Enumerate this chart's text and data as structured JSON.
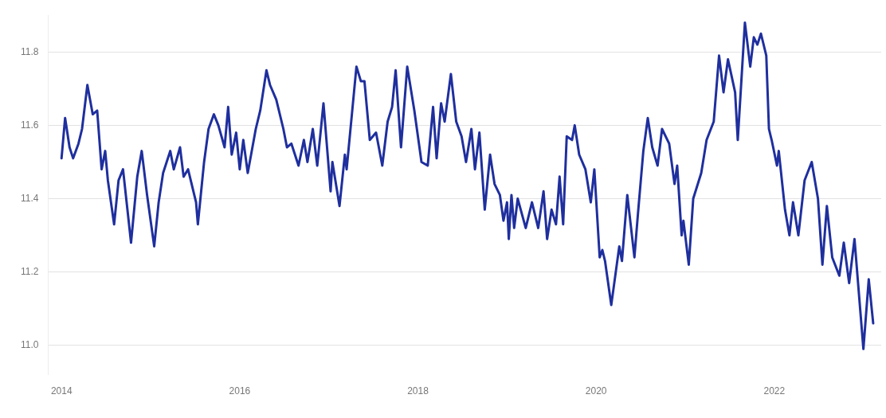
{
  "chart_data": {
    "type": "line",
    "color": "#1f2f9e",
    "marker": "none",
    "grid": "y",
    "xlim": [
      2013.85,
      2023.2
    ],
    "ylim": [
      10.92,
      11.9
    ],
    "xticks": [
      2014,
      2016,
      2018,
      2020,
      2022
    ],
    "yticks": [
      {
        "value": 11,
        "label": "11.0"
      },
      11.2,
      11.4,
      11.6,
      11.8
    ],
    "x": [
      2014.0,
      2014.04,
      2014.09,
      2014.13,
      2014.19,
      2014.23,
      2014.29,
      2014.35,
      2014.4,
      2014.45,
      2014.49,
      2014.52,
      2014.59,
      2014.64,
      2014.69,
      2014.78,
      2014.85,
      2014.9,
      2014.96,
      2015.04,
      2015.09,
      2015.14,
      2015.18,
      2015.22,
      2015.26,
      2015.33,
      2015.37,
      2015.42,
      2015.51,
      2015.53,
      2015.6,
      2015.65,
      2015.71,
      2015.76,
      2015.83,
      2015.87,
      2015.91,
      2015.96,
      2016.0,
      2016.04,
      2016.09,
      2016.18,
      2016.23,
      2016.3,
      2016.34,
      2016.41,
      2016.49,
      2016.53,
      2016.58,
      2016.66,
      2016.72,
      2016.76,
      2016.82,
      2016.87,
      2016.94,
      2017.02,
      2017.04,
      2017.12,
      2017.18,
      2017.2,
      2017.31,
      2017.36,
      2017.4,
      2017.46,
      2017.53,
      2017.6,
      2017.66,
      2017.71,
      2017.75,
      2017.81,
      2017.88,
      2017.96,
      2018.04,
      2018.11,
      2018.17,
      2018.21,
      2018.26,
      2018.3,
      2018.37,
      2018.43,
      2018.49,
      2018.54,
      2018.6,
      2018.64,
      2018.69,
      2018.75,
      2018.81,
      2018.86,
      2018.92,
      2018.96,
      2019.0,
      2019.02,
      2019.05,
      2019.08,
      2019.12,
      2019.21,
      2019.28,
      2019.35,
      2019.41,
      2019.45,
      2019.5,
      2019.55,
      2019.59,
      2019.63,
      2019.67,
      2019.73,
      2019.76,
      2019.81,
      2019.88,
      2019.94,
      2019.98,
      2020.04,
      2020.07,
      2020.1,
      2020.17,
      2020.26,
      2020.29,
      2020.35,
      2020.43,
      2020.47,
      2020.53,
      2020.58,
      2020.63,
      2020.69,
      2020.74,
      2020.82,
      2020.88,
      2020.91,
      2020.96,
      2020.98,
      2021.04,
      2021.09,
      2021.18,
      2021.24,
      2021.32,
      2021.38,
      2021.43,
      2021.48,
      2021.56,
      2021.59,
      2021.67,
      2021.73,
      2021.77,
      2021.81,
      2021.85,
      2021.91,
      2021.94,
      2021.97,
      2022.03,
      2022.05,
      2022.12,
      2022.17,
      2022.21,
      2022.27,
      2022.34,
      2022.42,
      2022.49,
      2022.54,
      2022.59,
      2022.65,
      2022.73,
      2022.78,
      2022.84,
      2022.9,
      2023.0,
      2023.06,
      2023.11
    ],
    "values": [
      11.51,
      11.62,
      11.54,
      11.51,
      11.55,
      11.59,
      11.71,
      11.63,
      11.64,
      11.48,
      11.53,
      11.45,
      11.33,
      11.45,
      11.48,
      11.28,
      11.46,
      11.53,
      11.41,
      11.27,
      11.39,
      11.47,
      11.5,
      11.53,
      11.48,
      11.54,
      11.46,
      11.48,
      11.39,
      11.33,
      11.5,
      11.59,
      11.63,
      11.6,
      11.54,
      11.65,
      11.52,
      11.58,
      11.48,
      11.56,
      11.47,
      11.59,
      11.64,
      11.75,
      11.71,
      11.67,
      11.59,
      11.54,
      11.55,
      11.49,
      11.56,
      11.5,
      11.59,
      11.49,
      11.66,
      11.42,
      11.5,
      11.38,
      11.52,
      11.48,
      11.76,
      11.72,
      11.72,
      11.56,
      11.58,
      11.49,
      11.61,
      11.65,
      11.75,
      11.54,
      11.76,
      11.64,
      11.5,
      11.49,
      11.65,
      11.51,
      11.66,
      11.61,
      11.74,
      11.61,
      11.57,
      11.5,
      11.59,
      11.48,
      11.58,
      11.37,
      11.52,
      11.44,
      11.41,
      11.34,
      11.39,
      11.29,
      11.41,
      11.32,
      11.4,
      11.32,
      11.39,
      11.32,
      11.42,
      11.29,
      11.37,
      11.33,
      11.46,
      11.33,
      11.57,
      11.56,
      11.6,
      11.52,
      11.48,
      11.39,
      11.48,
      11.24,
      11.26,
      11.23,
      11.11,
      11.27,
      11.23,
      11.41,
      11.24,
      11.36,
      11.53,
      11.62,
      11.54,
      11.49,
      11.59,
      11.55,
      11.44,
      11.49,
      11.3,
      11.34,
      11.22,
      11.4,
      11.47,
      11.56,
      11.61,
      11.79,
      11.69,
      11.78,
      11.69,
      11.56,
      11.88,
      11.76,
      11.84,
      11.82,
      11.85,
      11.79,
      11.59,
      11.56,
      11.49,
      11.53,
      11.37,
      11.3,
      11.39,
      11.3,
      11.45,
      11.5,
      11.4,
      11.22,
      11.38,
      11.24,
      11.19,
      11.28,
      11.17,
      11.29,
      10.99,
      11.18,
      11.06
    ]
  }
}
